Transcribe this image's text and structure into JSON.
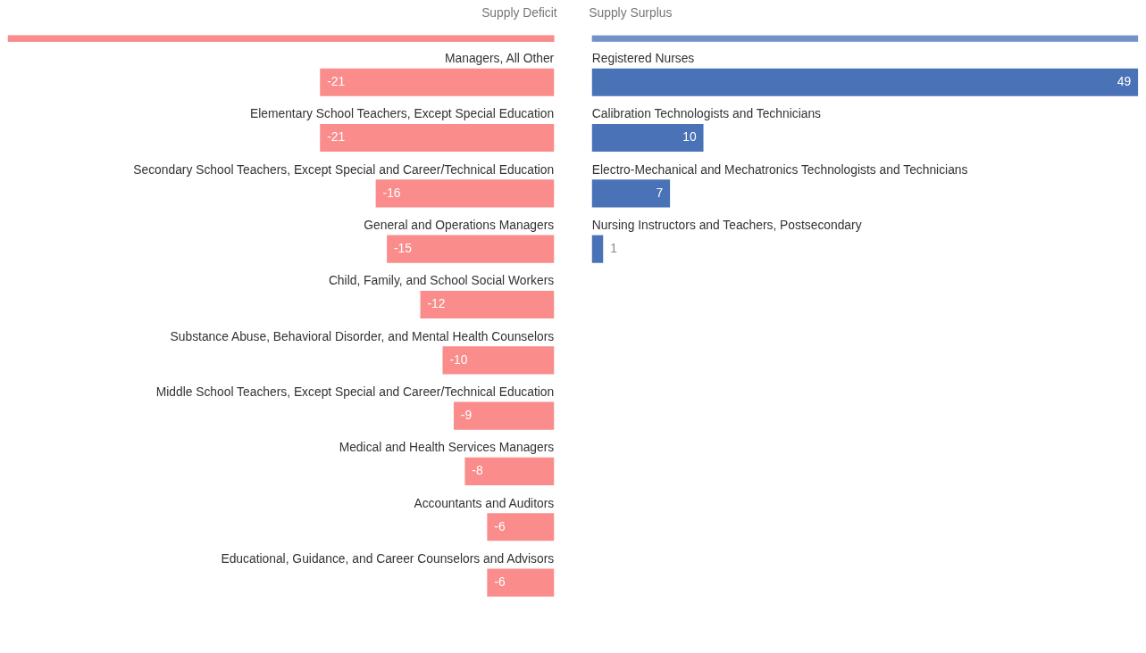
{
  "chart_data": [
    {
      "type": "bar",
      "orientation": "horizontal",
      "title": "Supply Deficit",
      "data_labels": true,
      "color": "#fa8c8c",
      "categories": [
        "Managers, All Other",
        "Elementary School Teachers, Except Special Education",
        "Secondary School Teachers, Except Special and Career/Technical Education",
        "General and Operations Managers",
        "Child, Family, and School Social Workers",
        "Substance Abuse, Behavioral Disorder, and Mental Health Counselors",
        "Middle School Teachers, Except Special and Career/Technical Education",
        "Medical and Health Services Managers",
        "Accountants and Auditors",
        "Educational, Guidance, and Career Counselors and Advisors"
      ],
      "values": [
        -21,
        -21,
        -16,
        -15,
        -12,
        -10,
        -9,
        -8,
        -6,
        -6
      ]
    },
    {
      "type": "bar",
      "orientation": "horizontal",
      "title": "Supply Surplus",
      "data_labels": true,
      "color": "#4a72b6",
      "categories": [
        "Registered Nurses",
        "Calibration Technologists and Technicians",
        "Electro-Mechanical and Mechatronics Technologists and Technicians",
        "Nursing Instructors and Teachers, Postsecondary"
      ],
      "values": [
        49,
        10,
        7,
        1
      ]
    }
  ]
}
